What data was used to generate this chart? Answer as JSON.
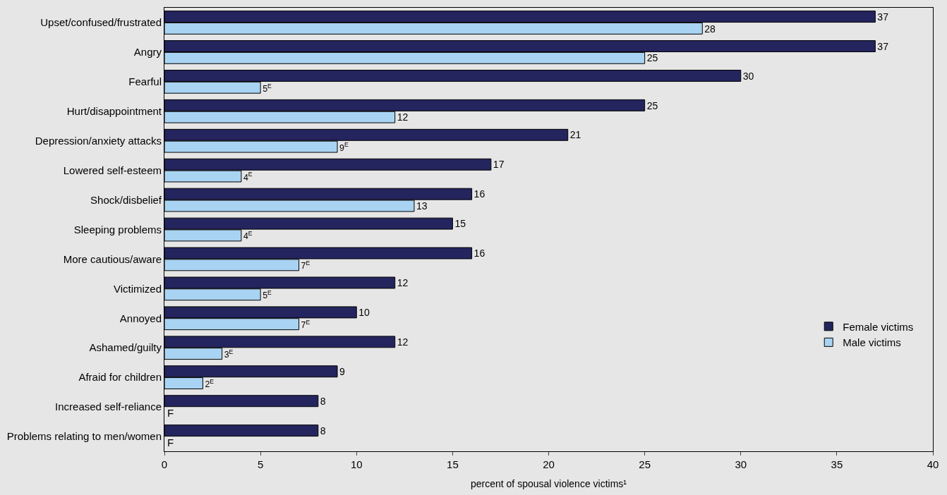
{
  "chart_data": {
    "type": "bar",
    "orientation": "horizontal",
    "xlabel": "percent of spousal violence victims¹",
    "categories": [
      "Upset/confused/frustrated",
      "Angry",
      "Fearful",
      "Hurt/disappointment",
      "Depression/anxiety attacks",
      "Lowered self-esteem",
      "Shock/disbelief",
      "Sleeping problems",
      "More cautious/aware",
      "Victimized",
      "Annoyed",
      "Ashamed/guilty",
      "Afraid for children",
      "Increased self-reliance",
      "Problems relating to men/women"
    ],
    "series": [
      {
        "name": "Female victims",
        "color": "#24245e",
        "values": [
          37,
          37,
          30,
          25,
          21,
          17,
          16,
          15,
          16,
          12,
          10,
          12,
          9,
          8,
          8
        ],
        "value_labels": [
          "37",
          "37",
          "30",
          "25",
          "21",
          "17",
          "16",
          "15",
          "16",
          "12",
          "10",
          "12",
          "9",
          "8",
          "8"
        ]
      },
      {
        "name": "Male victims",
        "color": "#a9d3f2",
        "values": [
          28,
          25,
          5,
          12,
          9,
          4,
          13,
          4,
          7,
          5,
          7,
          3,
          2,
          null,
          null
        ],
        "value_labels": [
          "28",
          "25",
          "5$^{E}$",
          "12",
          "9$^{E}$",
          "4$^{E}$",
          "13",
          "4$^{E}$",
          "7$^{E}$",
          "5$^{E}$",
          "7$^{E}$",
          "3$^{E}$",
          "2$^{E}$",
          "F",
          "F"
        ]
      }
    ],
    "xlim": [
      0,
      40
    ],
    "xticks": [
      0,
      5,
      10,
      15,
      20,
      25,
      30,
      35,
      40
    ],
    "grid": false,
    "legend": "bottom right"
  }
}
